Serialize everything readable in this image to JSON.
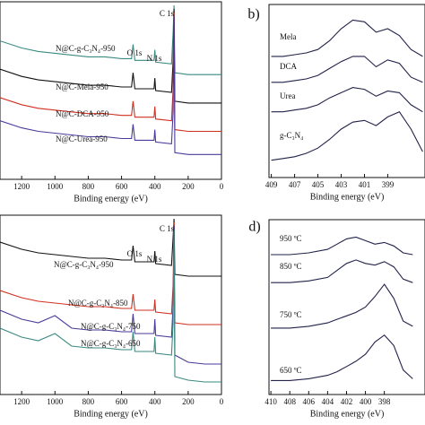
{
  "chart_data": [
    {
      "type": "line",
      "xlabel": "Binding energy (eV)",
      "xlim": [
        1330,
        0
      ],
      "ylim": [
        0,
        100
      ],
      "xticks": [
        1200,
        1000,
        800,
        600,
        400,
        200,
        0
      ],
      "x": [
        1330,
        1200,
        1100,
        1000,
        900,
        800,
        700,
        600,
        540,
        531,
        520,
        450,
        405,
        400,
        395,
        300,
        290,
        285,
        280,
        200,
        100,
        0
      ],
      "series": [
        {
          "name": "N@C-g-C₃N₄-950",
          "color": "#3a8a80",
          "values": [
            78,
            74,
            72,
            71,
            70,
            69,
            69,
            68,
            68,
            76,
            67,
            67,
            67,
            73,
            66,
            65,
            83,
            98,
            60,
            59,
            59,
            59
          ]
        },
        {
          "name": "N@C-Mela-950",
          "color": "#111111",
          "values": [
            62,
            58,
            56,
            55,
            54,
            53,
            53,
            52,
            52,
            60,
            51,
            51,
            51,
            57,
            50,
            49,
            67,
            96,
            44,
            43,
            43,
            43
          ]
        },
        {
          "name": "N@C-DCA-950",
          "color": "#d03020",
          "values": [
            46,
            42,
            40,
            39,
            38,
            37,
            37,
            36,
            36,
            44,
            35,
            35,
            35,
            41,
            34,
            33,
            51,
            94,
            28,
            27,
            27,
            27
          ]
        },
        {
          "name": "N@C-Urea-950",
          "color": "#4a3a9a",
          "values": [
            33,
            29,
            27,
            26,
            25,
            24,
            24,
            23,
            23,
            31,
            22,
            22,
            22,
            28,
            21,
            20,
            38,
            92,
            15,
            14,
            14,
            14
          ]
        }
      ],
      "annotations": [
        "C 1s",
        "O 1s",
        "N 1s"
      ]
    },
    {
      "type": "line",
      "title": "b)",
      "xlabel": "Binding energy (eV)",
      "xlim": [
        409.2,
        395.8
      ],
      "ylim": [
        0,
        100
      ],
      "xticks": [
        409,
        407,
        405,
        403,
        401,
        399
      ],
      "x": [
        409,
        408,
        407,
        406,
        405,
        404,
        403,
        402,
        401,
        400,
        399,
        398,
        397,
        396
      ],
      "series": [
        {
          "name": "Mela",
          "color": "#22224a",
          "values": [
            70,
            70,
            71,
            72,
            74,
            79,
            86,
            91,
            90,
            84,
            86,
            82,
            74,
            70
          ]
        },
        {
          "name": "DCA",
          "color": "#22224a",
          "values": [
            55,
            55,
            56,
            57,
            59,
            63,
            67,
            70,
            70,
            64,
            68,
            66,
            58,
            55
          ]
        },
        {
          "name": "Urea",
          "color": "#22224a",
          "values": [
            38,
            38,
            39,
            40,
            42,
            46,
            49,
            52,
            51,
            47,
            50,
            49,
            42,
            38
          ]
        },
        {
          "name": "g-C₃N₄",
          "color": "#22224a",
          "values": [
            10,
            11,
            12,
            14,
            17,
            22,
            28,
            32,
            33,
            30,
            35,
            38,
            28,
            15
          ]
        }
      ]
    },
    {
      "type": "line",
      "xlabel": "Binding energy (eV)",
      "xlim": [
        1330,
        0
      ],
      "ylim": [
        0,
        100
      ],
      "xticks": [
        1200,
        1000,
        800,
        600,
        400,
        200,
        0
      ],
      "x": [
        1330,
        1200,
        1100,
        1000,
        900,
        800,
        700,
        600,
        540,
        531,
        520,
        450,
        405,
        400,
        395,
        300,
        290,
        285,
        280,
        200,
        100,
        0
      ],
      "series": [
        {
          "name": "N@C-g-C₃N₄-950",
          "color": "#111111",
          "values": [
            85,
            81,
            79,
            78,
            77,
            76,
            76,
            75,
            75,
            83,
            74,
            74,
            74,
            80,
            73,
            72,
            88,
            98,
            67,
            66,
            66,
            66
          ]
        },
        {
          "name": "N@C-g-C₃N₄-850",
          "color": "#d03020",
          "values": [
            58,
            54,
            52,
            51,
            50,
            49,
            49,
            48,
            48,
            56,
            47,
            47,
            47,
            53,
            46,
            45,
            61,
            96,
            40,
            39,
            39,
            39
          ]
        },
        {
          "name": "N@C-g-C₃N₄-750",
          "color": "#4a3a9a",
          "values": [
            47,
            42,
            40,
            44,
            37,
            36,
            36,
            35,
            35,
            45,
            34,
            34,
            34,
            42,
            33,
            32,
            50,
            94,
            22,
            18,
            17,
            17
          ]
        },
        {
          "name": "N@C-g-C₃N₄-650",
          "color": "#3a8a80",
          "values": [
            37,
            32,
            30,
            34,
            27,
            26,
            26,
            25,
            25,
            35,
            24,
            24,
            24,
            32,
            23,
            22,
            40,
            92,
            10,
            8,
            7,
            7
          ]
        }
      ],
      "annotations": [
        "C 1s",
        "O 1s",
        "N 1s"
      ]
    },
    {
      "type": "line",
      "title": "d)",
      "xlabel": "Binding energy (eV)",
      "xlim": [
        410.2,
        393.7
      ],
      "ylim": [
        0,
        100
      ],
      "xticks": [
        410,
        408,
        406,
        404,
        402,
        400,
        398
      ],
      "x": [
        410,
        408,
        406,
        404,
        403,
        402,
        401,
        400,
        399,
        398,
        397,
        396,
        395
      ],
      "series": [
        {
          "name": "950 ºC",
          "color": "#22224a",
          "values": [
            80,
            80,
            81,
            83,
            86,
            89,
            90,
            88,
            86,
            87,
            85,
            81,
            80
          ]
        },
        {
          "name": "850 ºC",
          "color": "#22224a",
          "values": [
            64,
            64,
            65,
            67,
            71,
            75,
            77,
            75,
            74,
            76,
            73,
            66,
            64
          ]
        },
        {
          "name": "750 ºC",
          "color": "#22224a",
          "values": [
            38,
            38,
            39,
            41,
            43,
            45,
            47,
            50,
            56,
            63,
            55,
            42,
            39
          ]
        },
        {
          "name": "650 ºC",
          "color": "#22224a",
          "values": [
            8,
            8,
            9,
            11,
            13,
            16,
            19,
            23,
            30,
            34,
            28,
            14,
            9
          ]
        }
      ]
    }
  ]
}
